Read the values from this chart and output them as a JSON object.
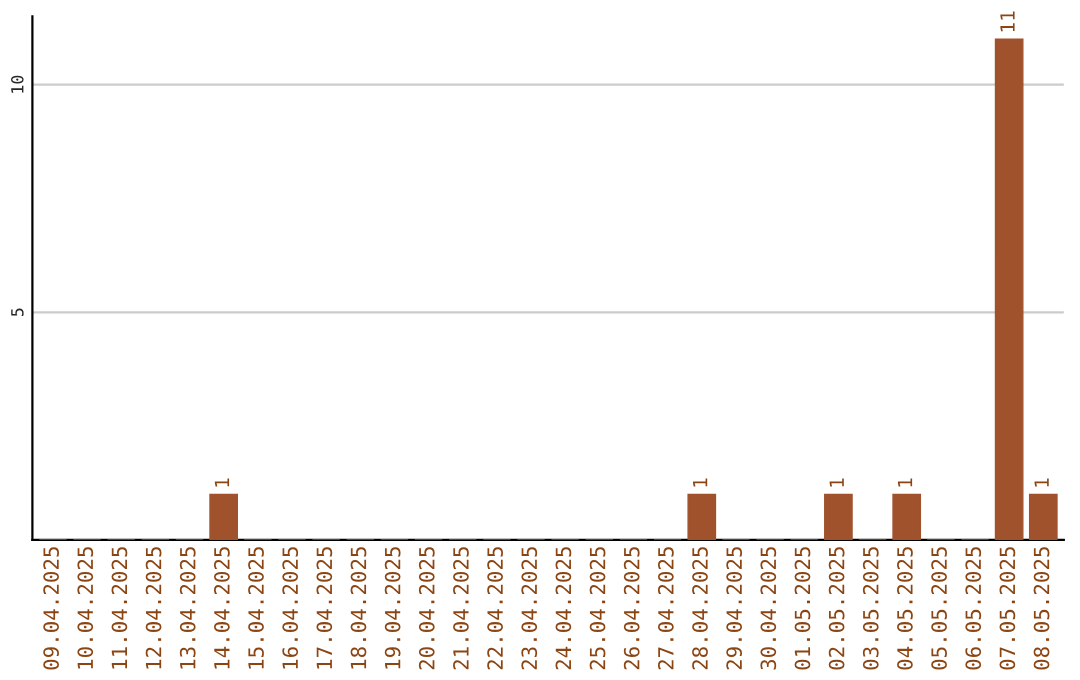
{
  "chart_data": {
    "type": "bar",
    "categories": [
      "09.04.2025",
      "10.04.2025",
      "11.04.2025",
      "12.04.2025",
      "13.04.2025",
      "14.04.2025",
      "15.04.2025",
      "16.04.2025",
      "17.04.2025",
      "18.04.2025",
      "19.04.2025",
      "20.04.2025",
      "21.04.2025",
      "22.04.2025",
      "23.04.2025",
      "24.04.2025",
      "25.04.2025",
      "26.04.2025",
      "27.04.2025",
      "28.04.2025",
      "29.04.2025",
      "30.04.2025",
      "01.05.2025",
      "02.05.2025",
      "03.05.2025",
      "04.05.2025",
      "05.05.2025",
      "06.05.2025",
      "07.05.2025",
      "08.05.2025"
    ],
    "values": [
      0,
      0,
      0,
      0,
      0,
      1,
      0,
      0,
      0,
      0,
      0,
      0,
      0,
      0,
      0,
      0,
      0,
      0,
      0,
      1,
      0,
      0,
      0,
      1,
      0,
      1,
      0,
      0,
      11,
      1
    ],
    "value_labels": [
      null,
      null,
      null,
      null,
      null,
      "1",
      null,
      null,
      null,
      null,
      null,
      null,
      null,
      null,
      null,
      null,
      null,
      null,
      null,
      "1",
      null,
      null,
      null,
      "1",
      null,
      "1",
      null,
      null,
      "11",
      "1"
    ],
    "color": "#a0522d",
    "ylim": [
      0,
      11.5
    ],
    "yticks": [
      5,
      10
    ],
    "grid": "y"
  }
}
